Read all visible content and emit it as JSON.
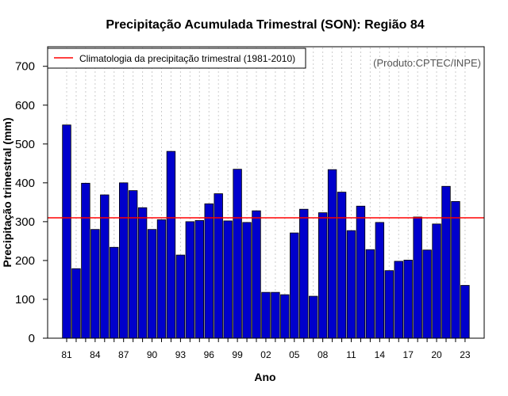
{
  "chart_data": {
    "type": "bar",
    "title": "Precipitação Acumulada Trimestral (SON): Região 84",
    "xlabel": "Ano",
    "ylabel": "Precipitação trimestral (mm)",
    "ylim": [
      0,
      750
    ],
    "yticks": [
      0,
      100,
      200,
      300,
      400,
      500,
      600,
      700
    ],
    "xtick_labels": [
      "81",
      "84",
      "87",
      "90",
      "93",
      "96",
      "99",
      "02",
      "05",
      "08",
      "11",
      "14",
      "17",
      "20",
      "23"
    ],
    "categories": [
      "1981",
      "1982",
      "1983",
      "1984",
      "1985",
      "1986",
      "1987",
      "1988",
      "1989",
      "1990",
      "1991",
      "1992",
      "1993",
      "1994",
      "1995",
      "1996",
      "1997",
      "1998",
      "1999",
      "2000",
      "2001",
      "2002",
      "2003",
      "2004",
      "2005",
      "2006",
      "2007",
      "2008",
      "2009",
      "2010",
      "2011",
      "2012",
      "2013",
      "2014",
      "2015",
      "2016",
      "2017",
      "2018",
      "2019",
      "2020",
      "2021",
      "2022",
      "2023"
    ],
    "values": [
      549,
      179,
      399,
      280,
      369,
      234,
      400,
      380,
      336,
      280,
      305,
      481,
      214,
      300,
      303,
      346,
      372,
      302,
      435,
      298,
      328,
      118,
      118,
      112,
      271,
      332,
      108,
      323,
      434,
      376,
      277,
      340,
      228,
      298,
      174,
      198,
      201,
      312,
      227,
      294,
      391,
      352,
      136
    ],
    "climatology": 310,
    "bar_color": "#0000cc",
    "climatology_color": "#ff0000",
    "grid": "vertical dotted",
    "legend": {
      "position": "top-left",
      "entries": [
        "Climatologia da precipitação trimestral (1981-2010)"
      ]
    },
    "annotation": "(Produto:CPTEC/INPE)"
  }
}
